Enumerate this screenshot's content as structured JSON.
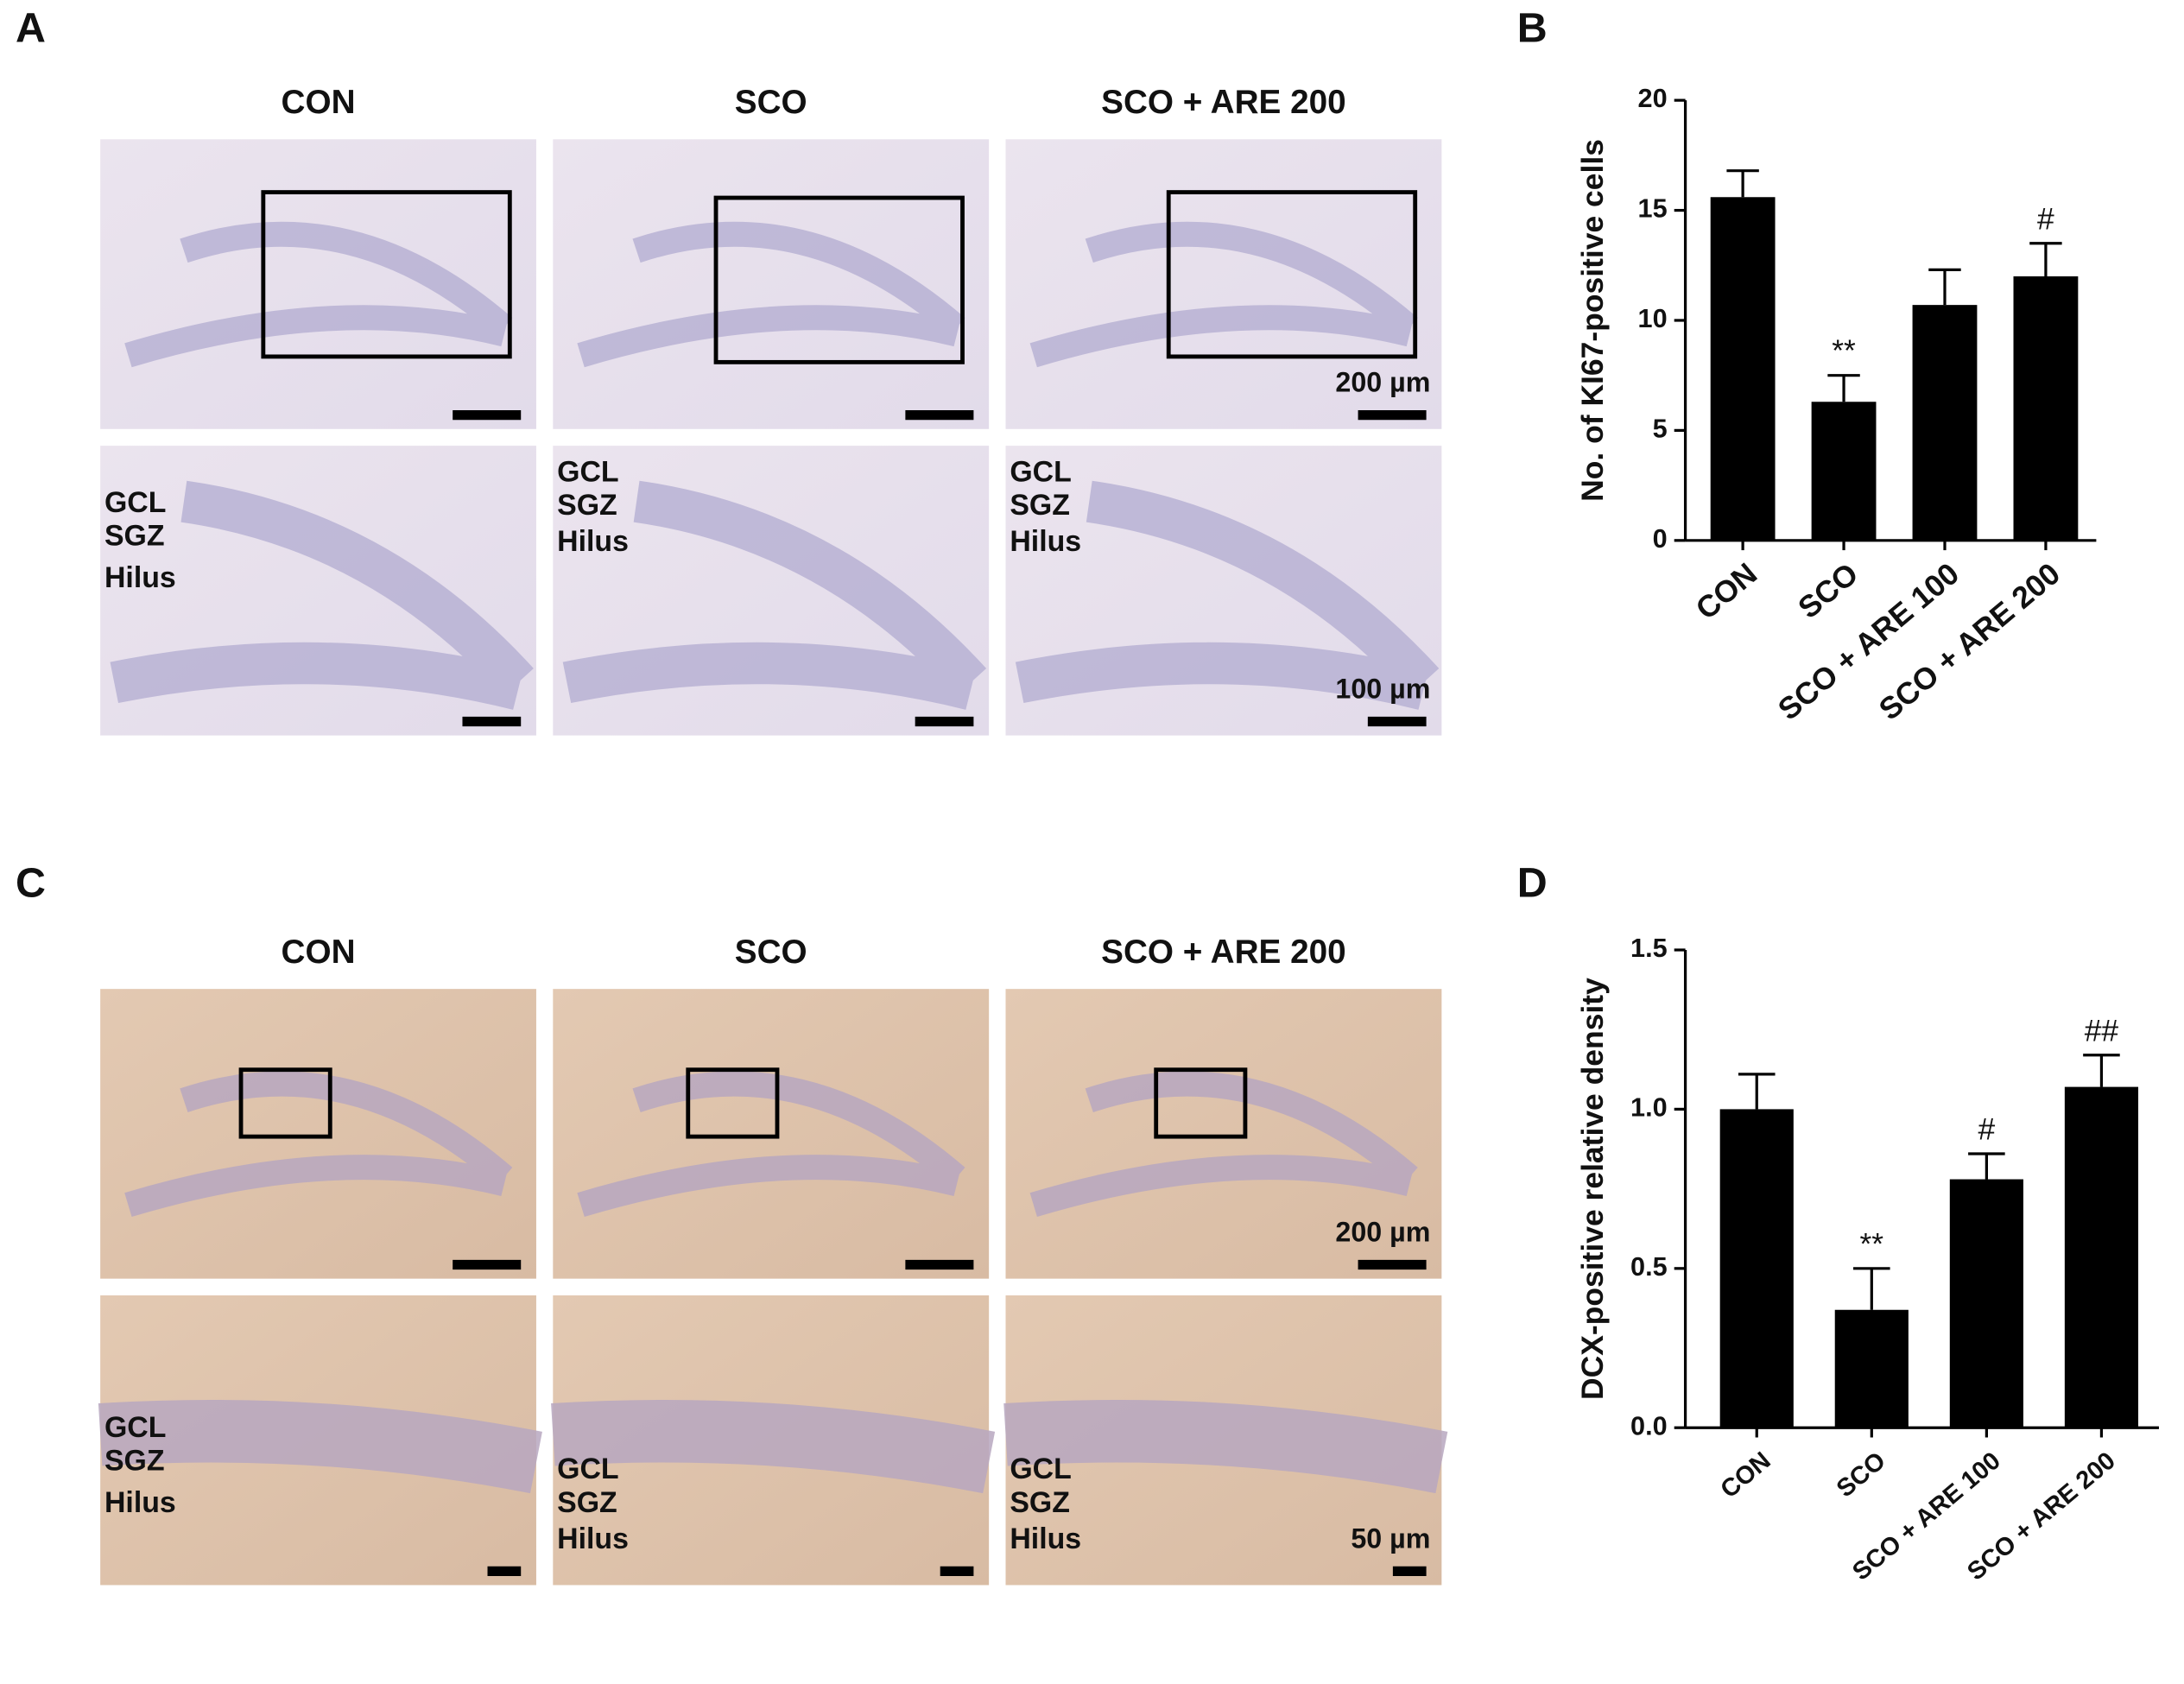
{
  "panels": [
    {
      "label": "A",
      "columns": [
        "CON",
        "SCO",
        "SCO + ARE 200"
      ],
      "overview_scale": "200 µm",
      "zoom_scale": "100 µm",
      "layers": [
        "GCL",
        "SGZ",
        "Hilus"
      ]
    },
    {
      "label": "C",
      "columns": [
        "CON",
        "SCO",
        "SCO + ARE 200"
      ],
      "overview_scale": "200 µm",
      "zoom_scale": "50 µm",
      "layers": [
        "GCL",
        "SGZ",
        "Hilus"
      ]
    }
  ],
  "chart_data": [
    {
      "type": "bar",
      "panel_label": "B",
      "y_label": "No. of KI67-positive cells",
      "categories": [
        "CON",
        "SCO",
        "SCO + ARE 100",
        "SCO + ARE 200"
      ],
      "values": [
        15.6,
        6.3,
        10.7,
        12.0
      ],
      "errors": [
        1.2,
        1.2,
        1.6,
        1.5
      ],
      "significance": [
        null,
        "**",
        null,
        "#"
      ],
      "color": "#000000",
      "ylim": [
        0,
        20
      ],
      "yticks": [
        0,
        5,
        10,
        15,
        20
      ]
    },
    {
      "type": "bar",
      "panel_label": "D",
      "y_label": "DCX-positive relative density",
      "categories": [
        "CON",
        "SCO",
        "SCO + ARE 100",
        "SCO + ARE 200"
      ],
      "values": [
        1.0,
        0.37,
        0.78,
        1.07
      ],
      "errors": [
        0.11,
        0.13,
        0.08,
        0.1
      ],
      "significance": [
        null,
        "**",
        "#",
        "##"
      ],
      "color": "#000000",
      "ylim": [
        0,
        1.5
      ],
      "yticks": [
        {
          "value": 0,
          "label": "0.0"
        },
        0.5,
        {
          "value": 1,
          "label": "1.0"
        },
        1.5
      ]
    }
  ]
}
